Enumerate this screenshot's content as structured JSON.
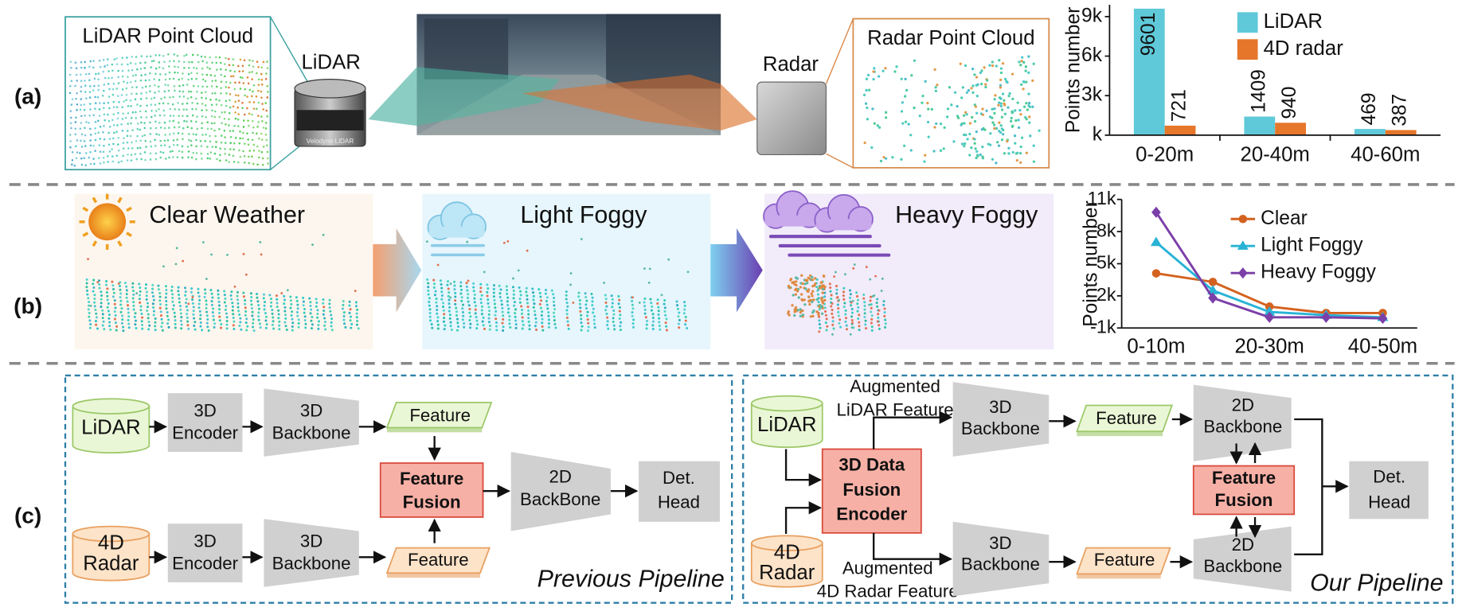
{
  "labels": {
    "a": "(a)",
    "b": "(b)",
    "c": "(c)"
  },
  "sensing": {
    "lidar_cloud": "LiDAR Point Cloud",
    "lidar": "LiDAR",
    "lidar_brand": "Velodyne LiDAR",
    "radar": "Radar",
    "radar_cloud": "Radar Point Cloud"
  },
  "weather": [
    "Clear Weather",
    "Light Foggy",
    "Heavy Foggy"
  ],
  "previous_pipeline": {
    "lidar": "LiDAR",
    "radar": [
      "4D",
      "Radar"
    ],
    "encoder": [
      "3D",
      "Encoder"
    ],
    "backbone": [
      "3D",
      "Backbone"
    ],
    "feature": "Feature",
    "fusion": [
      "Feature",
      "Fusion"
    ],
    "backbone_2d": [
      "2D",
      "BackBone"
    ],
    "head": [
      "Det.",
      "Head"
    ],
    "caption": "Previous Pipeline"
  },
  "our_pipeline": {
    "lidar": "LiDAR",
    "radar": [
      "4D",
      "Radar"
    ],
    "encoder": [
      "3D Data",
      "Fusion",
      "Encoder"
    ],
    "augmented_lidar": [
      "Augmented",
      "LiDAR Feature"
    ],
    "augmented_radar": [
      "Augmented",
      "4D Radar Feature"
    ],
    "backbone": [
      "3D",
      "Backbone"
    ],
    "feature": "Feature",
    "backbone_2d": [
      "2D",
      "Backbone"
    ],
    "fusion": [
      "Feature",
      "Fusion"
    ],
    "head": [
      "Det.",
      "Head"
    ],
    "caption": "Our Pipeline"
  },
  "chart_data": [
    {
      "type": "bar",
      "ylabel": "Points number",
      "categories": [
        "0-20m",
        "20-40m",
        "40-60m"
      ],
      "series": [
        {
          "name": "LiDAR",
          "color": "#5fc9d9",
          "values": [
            9601,
            1409,
            469
          ]
        },
        {
          "name": "4D radar",
          "color": "#e5762a",
          "values": [
            721,
            940,
            387
          ]
        }
      ],
      "ylim": [
        0,
        9900
      ],
      "yticks": [
        {
          "value": 0,
          "label": "k"
        },
        {
          "value": 3000,
          "label": "3k"
        },
        {
          "value": 6000,
          "label": "6k"
        },
        {
          "value": 9000,
          "label": "9k"
        }
      ],
      "legend": "upper right"
    },
    {
      "type": "line",
      "ylabel": "Points number",
      "categories": [
        "0-10m",
        null,
        "20-30m",
        null,
        "40-50m"
      ],
      "series": [
        {
          "name": "Clear",
          "color": "#d4621f",
          "marker": "circle",
          "values": [
            4100,
            3300,
            1000,
            400,
            400
          ]
        },
        {
          "name": "Light Foggy",
          "color": "#29b3d6",
          "marker": "triangle",
          "values": [
            7000,
            2500,
            500,
            200,
            0
          ]
        },
        {
          "name": "Heavy Foggy",
          "color": "#7b3fa8",
          "marker": "diamond",
          "values": [
            9800,
            1800,
            0,
            0,
            -100
          ]
        }
      ],
      "ylim": [
        -1000,
        11000
      ],
      "yticks": [
        {
          "value": -1000,
          "label": "-1k"
        },
        {
          "value": 2000,
          "label": "2k"
        },
        {
          "value": 5000,
          "label": "5k"
        },
        {
          "value": 8000,
          "label": "8k"
        },
        {
          "value": 11000,
          "label": "11k"
        }
      ],
      "legend": "upper right"
    }
  ]
}
